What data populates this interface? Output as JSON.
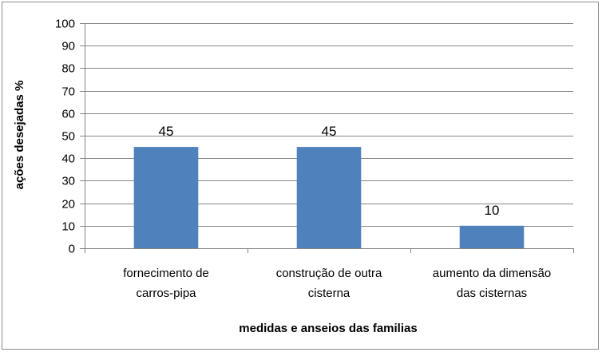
{
  "chart_data": {
    "type": "bar",
    "categories": [
      [
        "fornecimento de",
        "carros-pipa"
      ],
      [
        "construção de outra",
        "cisterna"
      ],
      [
        "aumento da dimensão",
        "das cisternas"
      ]
    ],
    "values": [
      45,
      45,
      10
    ],
    "data_labels": [
      "45",
      "45",
      "10"
    ],
    "xlabel": "medidas e anseios das familias",
    "ylabel": "ações desejadas %",
    "ylim": [
      0,
      100
    ],
    "yticks": [
      "0",
      "10",
      "20",
      "30",
      "40",
      "50",
      "60",
      "70",
      "80",
      "90",
      "100"
    ],
    "grid": true,
    "legend": "none",
    "bar_color": "#4f81bd",
    "grid_color": "#868686",
    "axis_color": "#868686"
  }
}
